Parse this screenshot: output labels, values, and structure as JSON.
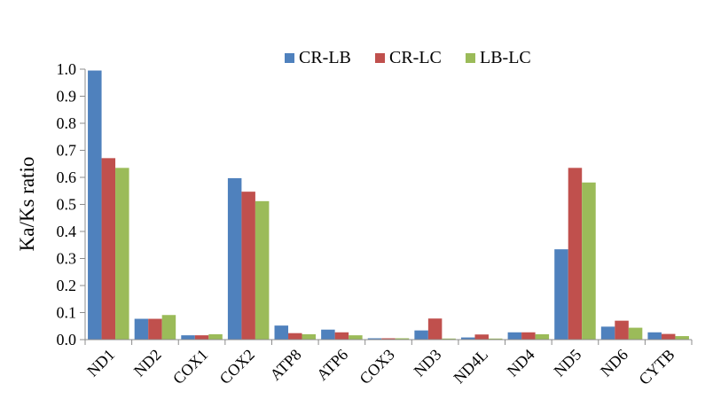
{
  "chart_data": {
    "type": "bar",
    "ylabel": "Ka/Ks ratio",
    "xlabel": "",
    "title": "",
    "ylim": [
      0,
      1.0
    ],
    "yticks": [
      "0.0",
      "0.1",
      "0.2",
      "0.3",
      "0.4",
      "0.5",
      "0.6",
      "0.7",
      "0.8",
      "0.9",
      "1.0"
    ],
    "categories": [
      "ND1",
      "ND2",
      "COX1",
      "COX2",
      "ATP8",
      "ATP6",
      "COX3",
      "ND3",
      "ND4L",
      "ND4",
      "ND5",
      "ND6",
      "CYTB"
    ],
    "series": [
      {
        "name": "CR-LB",
        "color": "#4F81BD",
        "values": [
          0.995,
          0.077,
          0.016,
          0.597,
          0.052,
          0.037,
          0.005,
          0.034,
          0.008,
          0.027,
          0.334,
          0.048,
          0.027
        ]
      },
      {
        "name": "CR-LC",
        "color": "#C0504D",
        "values": [
          0.671,
          0.077,
          0.016,
          0.547,
          0.024,
          0.027,
          0.005,
          0.078,
          0.019,
          0.027,
          0.635,
          0.07,
          0.021
        ]
      },
      {
        "name": "LB-LC",
        "color": "#9BBB59",
        "values": [
          0.635,
          0.091,
          0.02,
          0.512,
          0.02,
          0.016,
          0.005,
          0.004,
          0.004,
          0.02,
          0.581,
          0.044,
          0.013
        ]
      }
    ],
    "legend": "top-right",
    "grid": false
  }
}
